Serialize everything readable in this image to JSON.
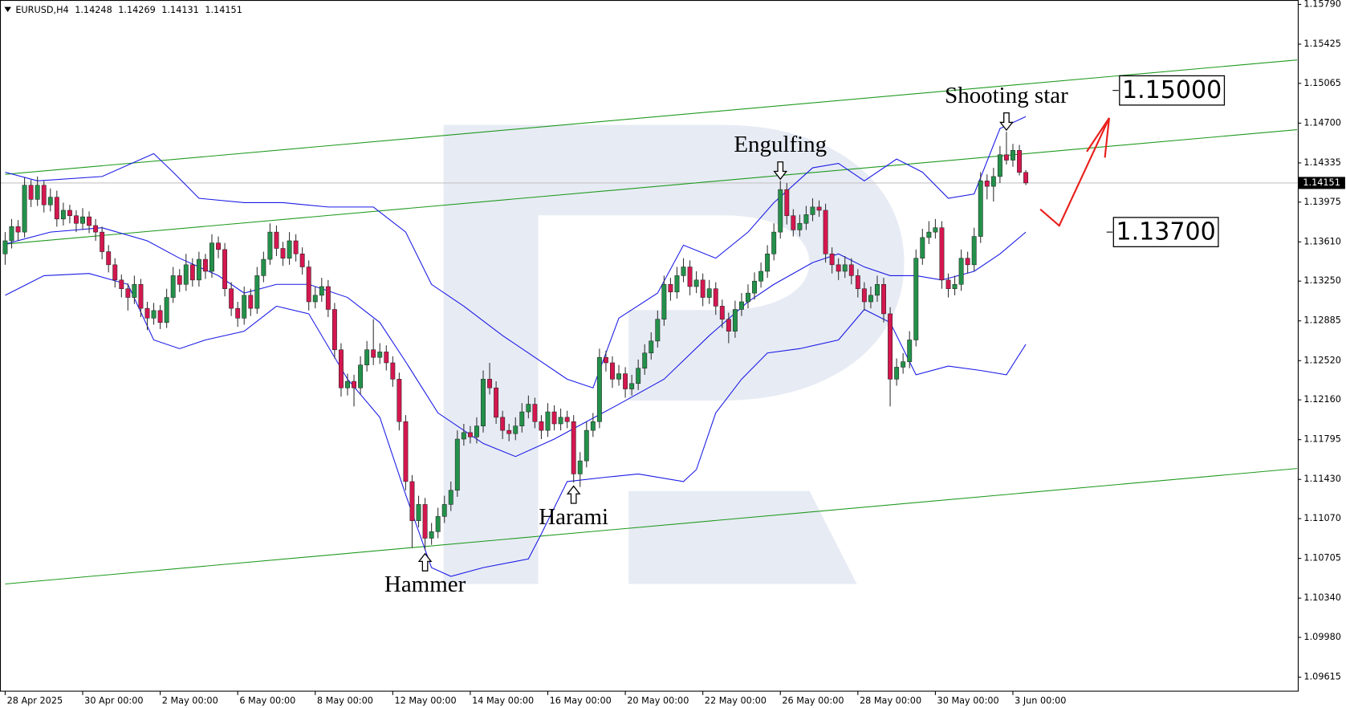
{
  "chart_data": {
    "type": "candlestick",
    "symbol": "EURUSD,H4",
    "up_color": "#23914a",
    "down_color": "#d4174f",
    "xlim": [
      -0.8,
      200.1
    ],
    "ylim": [
      1.0949,
      1.1583
    ],
    "yticks": [
      {
        "value": 1.1579,
        "label": "1.15790"
      },
      1.15425,
      1.15065,
      {
        "value": 1.147,
        "label": "1.14700"
      },
      1.14335,
      1.13975,
      {
        "value": 1.1361,
        "label": "1.13610"
      },
      {
        "value": 1.1325,
        "label": "1.13250"
      },
      1.12885,
      {
        "value": 1.1252,
        "label": "1.12520"
      },
      {
        "value": 1.1216,
        "label": "1.12160"
      },
      1.11795,
      {
        "value": 1.1143,
        "label": "1.11430"
      },
      {
        "value": 1.1107,
        "label": "1.11070"
      },
      1.10705,
      {
        "value": 1.1034,
        "label": "1.10340"
      },
      {
        "value": 1.0998,
        "label": "1.09980"
      },
      1.09615
    ],
    "xticks": [
      {
        "value": 0,
        "label": "28 Apr 2025"
      },
      {
        "value": 12,
        "label": "30 Apr 00:00"
      },
      {
        "value": 24,
        "label": "2 May 00:00"
      },
      {
        "value": 36,
        "label": "6 May 00:00"
      },
      {
        "value": 48,
        "label": "8 May 00:00"
      },
      {
        "value": 60,
        "label": "12 May 00:00"
      },
      {
        "value": 72,
        "label": "14 May 00:00"
      },
      {
        "value": 84,
        "label": "16 May 00:00"
      },
      {
        "value": 96,
        "label": "20 May 00:00"
      },
      {
        "value": 108,
        "label": "22 May 00:00"
      },
      {
        "value": 120,
        "label": "26 May 00:00"
      },
      {
        "value": 132,
        "label": "28 May 00:00"
      },
      {
        "value": 144,
        "label": "30 May 00:00"
      },
      {
        "value": 156,
        "label": "3 Jun 00:00"
      }
    ],
    "candles": [
      [
        1.135,
        1.137,
        1.134,
        1.1362
      ],
      [
        1.1362,
        1.1382,
        1.1355,
        1.1375
      ],
      [
        1.1375,
        1.1381,
        1.1362,
        1.137
      ],
      [
        1.137,
        1.142,
        1.1365,
        1.1413
      ],
      [
        1.1413,
        1.1418,
        1.1393,
        1.14
      ],
      [
        1.14,
        1.1421,
        1.1394,
        1.1413
      ],
      [
        1.1413,
        1.1417,
        1.1388,
        1.1395
      ],
      [
        1.1395,
        1.141,
        1.1389,
        1.1402
      ],
      [
        1.1402,
        1.1408,
        1.1375,
        1.1382
      ],
      [
        1.1382,
        1.1397,
        1.1376,
        1.139
      ],
      [
        1.139,
        1.1395,
        1.1378,
        1.1385
      ],
      [
        1.1385,
        1.139,
        1.137,
        1.1378
      ],
      [
        1.1378,
        1.1392,
        1.1372,
        1.1384
      ],
      [
        1.1384,
        1.1389,
        1.1369,
        1.1376
      ],
      [
        1.1376,
        1.1382,
        1.1362,
        1.137
      ],
      [
        1.137,
        1.1375,
        1.1345,
        1.1352
      ],
      [
        1.1352,
        1.1358,
        1.1333,
        1.134
      ],
      [
        1.134,
        1.1346,
        1.1319,
        1.1326
      ],
      [
        1.1326,
        1.1331,
        1.131,
        1.1318
      ],
      [
        1.1318,
        1.1323,
        1.1298,
        1.131
      ],
      [
        1.131,
        1.133,
        1.1304,
        1.1322
      ],
      [
        1.1322,
        1.1327,
        1.1292,
        1.13
      ],
      [
        1.13,
        1.1306,
        1.128,
        1.1291
      ],
      [
        1.1291,
        1.1305,
        1.1285,
        1.1298
      ],
      [
        1.1298,
        1.1303,
        1.1281,
        1.1287
      ],
      [
        1.1287,
        1.1318,
        1.1282,
        1.131
      ],
      [
        1.131,
        1.1338,
        1.1305,
        1.133
      ],
      [
        1.133,
        1.1336,
        1.1315,
        1.1322
      ],
      [
        1.1322,
        1.135,
        1.1316,
        1.134
      ],
      [
        1.134,
        1.1346,
        1.132,
        1.1326
      ],
      [
        1.1326,
        1.1352,
        1.132,
        1.1345
      ],
      [
        1.1345,
        1.135,
        1.1327,
        1.1334
      ],
      [
        1.1334,
        1.1368,
        1.1328,
        1.136
      ],
      [
        1.136,
        1.1366,
        1.1346,
        1.1354
      ],
      [
        1.1354,
        1.136,
        1.1311,
        1.1318
      ],
      [
        1.1318,
        1.1324,
        1.1293,
        1.13
      ],
      [
        1.13,
        1.1306,
        1.1283,
        1.1291
      ],
      [
        1.1291,
        1.132,
        1.1285,
        1.1312
      ],
      [
        1.1312,
        1.1318,
        1.1293,
        1.13
      ],
      [
        1.13,
        1.1338,
        1.1295,
        1.133
      ],
      [
        1.133,
        1.1352,
        1.1324,
        1.1345
      ],
      [
        1.1345,
        1.1378,
        1.134,
        1.137
      ],
      [
        1.137,
        1.1376,
        1.1348,
        1.1355
      ],
      [
        1.1355,
        1.1361,
        1.1339,
        1.1346
      ],
      [
        1.1346,
        1.137,
        1.134,
        1.1362
      ],
      [
        1.1362,
        1.1368,
        1.1343,
        1.135
      ],
      [
        1.135,
        1.1356,
        1.1331,
        1.1338
      ],
      [
        1.1338,
        1.1344,
        1.1298,
        1.1306
      ],
      [
        1.1306,
        1.132,
        1.13,
        1.1312
      ],
      [
        1.1312,
        1.1328,
        1.1306,
        1.132
      ],
      [
        1.132,
        1.1326,
        1.1292,
        1.1299
      ],
      [
        1.1299,
        1.1305,
        1.1254,
        1.1262
      ],
      [
        1.1262,
        1.1268,
        1.1219,
        1.1227
      ],
      [
        1.1227,
        1.124,
        1.122,
        1.1233
      ],
      [
        1.1233,
        1.1239,
        1.121,
        1.1227
      ],
      [
        1.1227,
        1.1256,
        1.1221,
        1.1248
      ],
      [
        1.1248,
        1.127,
        1.1242,
        1.1262
      ],
      [
        1.1262,
        1.129,
        1.1248,
        1.1255
      ],
      [
        1.1255,
        1.1268,
        1.1249,
        1.126
      ],
      [
        1.126,
        1.1266,
        1.1243,
        1.125
      ],
      [
        1.125,
        1.1256,
        1.1228,
        1.1235
      ],
      [
        1.1235,
        1.1241,
        1.1188,
        1.1196
      ],
      [
        1.1196,
        1.1202,
        1.1133,
        1.1141
      ],
      [
        1.1141,
        1.1147,
        1.108,
        1.1105
      ],
      [
        1.1105,
        1.1128,
        1.1099,
        1.112
      ],
      [
        1.112,
        1.1126,
        1.1078,
        1.1089
      ],
      [
        1.1089,
        1.1103,
        1.1083,
        1.1095
      ],
      [
        1.1095,
        1.1117,
        1.1089,
        1.1109
      ],
      [
        1.1109,
        1.1128,
        1.1103,
        1.112
      ],
      [
        1.112,
        1.1141,
        1.1114,
        1.1133
      ],
      [
        1.1133,
        1.1188,
        1.1127,
        1.118
      ],
      [
        1.118,
        1.1194,
        1.1174,
        1.1186
      ],
      [
        1.1186,
        1.1192,
        1.1176,
        1.1182
      ],
      [
        1.1182,
        1.12,
        1.1176,
        1.1192
      ],
      [
        1.1192,
        1.1243,
        1.1186,
        1.1235
      ],
      [
        1.1235,
        1.125,
        1.1221,
        1.1227
      ],
      [
        1.1227,
        1.1233,
        1.1194,
        1.12
      ],
      [
        1.12,
        1.1206,
        1.118,
        1.1188
      ],
      [
        1.1188,
        1.1194,
        1.1178,
        1.1185
      ],
      [
        1.1185,
        1.12,
        1.1179,
        1.1192
      ],
      [
        1.1192,
        1.1213,
        1.1186,
        1.1205
      ],
      [
        1.1205,
        1.122,
        1.1199,
        1.1212
      ],
      [
        1.1212,
        1.1218,
        1.119,
        1.1196
      ],
      [
        1.1196,
        1.1202,
        1.118,
        1.1188
      ],
      [
        1.1188,
        1.1213,
        1.1182,
        1.1205
      ],
      [
        1.1205,
        1.1211,
        1.1188,
        1.1194
      ],
      [
        1.1194,
        1.1208,
        1.1188,
        1.12
      ],
      [
        1.12,
        1.1206,
        1.119,
        1.1196
      ],
      [
        1.1196,
        1.1202,
        1.114,
        1.1148
      ],
      [
        1.1148,
        1.1168,
        1.1136,
        1.116
      ],
      [
        1.116,
        1.1196,
        1.1154,
        1.1188
      ],
      [
        1.1188,
        1.1204,
        1.1182,
        1.1196
      ],
      [
        1.1196,
        1.1263,
        1.119,
        1.1255
      ],
      [
        1.1255,
        1.1261,
        1.1242,
        1.125
      ],
      [
        1.125,
        1.1256,
        1.1227,
        1.1235
      ],
      [
        1.1235,
        1.1248,
        1.1229,
        1.124
      ],
      [
        1.124,
        1.1246,
        1.1218,
        1.1226
      ],
      [
        1.1226,
        1.1239,
        1.122,
        1.1231
      ],
      [
        1.1231,
        1.1253,
        1.1225,
        1.1245
      ],
      [
        1.1245,
        1.1267,
        1.1239,
        1.1259
      ],
      [
        1.1259,
        1.1278,
        1.1253,
        1.127
      ],
      [
        1.127,
        1.1298,
        1.1264,
        1.129
      ],
      [
        1.129,
        1.133,
        1.1284,
        1.1322
      ],
      [
        1.1322,
        1.1328,
        1.1307,
        1.1315
      ],
      [
        1.1315,
        1.1338,
        1.1309,
        1.133
      ],
      [
        1.133,
        1.1346,
        1.1324,
        1.1338
      ],
      [
        1.1338,
        1.1344,
        1.1312,
        1.132
      ],
      [
        1.132,
        1.1334,
        1.1314,
        1.1326
      ],
      [
        1.1326,
        1.1332,
        1.1302,
        1.131
      ],
      [
        1.131,
        1.1326,
        1.1304,
        1.1318
      ],
      [
        1.1318,
        1.1324,
        1.1294,
        1.1302
      ],
      [
        1.1302,
        1.1308,
        1.1282,
        1.129
      ],
      [
        1.129,
        1.1296,
        1.1268,
        1.1279
      ],
      [
        1.1279,
        1.1307,
        1.1273,
        1.1299
      ],
      [
        1.1299,
        1.1314,
        1.1293,
        1.1306
      ],
      [
        1.1306,
        1.1322,
        1.13,
        1.1314
      ],
      [
        1.1314,
        1.1333,
        1.1308,
        1.1325
      ],
      [
        1.1325,
        1.1342,
        1.1319,
        1.1334
      ],
      [
        1.1334,
        1.1358,
        1.1328,
        1.135
      ],
      [
        1.135,
        1.1378,
        1.1344,
        1.137
      ],
      [
        1.137,
        1.1417,
        1.1364,
        1.1409
      ],
      [
        1.1409,
        1.1415,
        1.1377,
        1.1385
      ],
      [
        1.1385,
        1.1391,
        1.1366,
        1.1372
      ],
      [
        1.1372,
        1.1386,
        1.1366,
        1.1378
      ],
      [
        1.1378,
        1.1394,
        1.1372,
        1.1386
      ],
      [
        1.1386,
        1.1401,
        1.138,
        1.1393
      ],
      [
        1.1393,
        1.1399,
        1.1384,
        1.139
      ],
      [
        1.139,
        1.1396,
        1.1342,
        1.135
      ],
      [
        1.135,
        1.1356,
        1.1332,
        1.134
      ],
      [
        1.134,
        1.1346,
        1.1326,
        1.1334
      ],
      [
        1.1334,
        1.1348,
        1.1328,
        1.134
      ],
      [
        1.134,
        1.1346,
        1.1322,
        1.133
      ],
      [
        1.133,
        1.1336,
        1.131,
        1.1318
      ],
      [
        1.1318,
        1.1324,
        1.1298,
        1.1306
      ],
      [
        1.1306,
        1.132,
        1.13,
        1.1312
      ],
      [
        1.1312,
        1.133,
        1.1306,
        1.1322
      ],
      [
        1.1322,
        1.1328,
        1.1287,
        1.1295
      ],
      [
        1.1295,
        1.1301,
        1.121,
        1.1235
      ],
      [
        1.1235,
        1.1254,
        1.1229,
        1.1246
      ],
      [
        1.1246,
        1.1259,
        1.124,
        1.1251
      ],
      [
        1.1251,
        1.1279,
        1.1245,
        1.1271
      ],
      [
        1.1271,
        1.1354,
        1.1265,
        1.1346
      ],
      [
        1.1346,
        1.1373,
        1.134,
        1.1365
      ],
      [
        1.1365,
        1.138,
        1.1359,
        1.137
      ],
      [
        1.137,
        1.1382,
        1.1364,
        1.1374
      ],
      [
        1.1374,
        1.138,
        1.1318,
        1.1326
      ],
      [
        1.1326,
        1.1332,
        1.131,
        1.1318
      ],
      [
        1.1318,
        1.133,
        1.1312,
        1.1322
      ],
      [
        1.1322,
        1.1354,
        1.1316,
        1.1346
      ],
      [
        1.1346,
        1.1352,
        1.1332,
        1.134
      ],
      [
        1.134,
        1.1374,
        1.1334,
        1.1366
      ],
      [
        1.1366,
        1.1425,
        1.136,
        1.1417
      ],
      [
        1.1417,
        1.1423,
        1.14,
        1.1412
      ],
      [
        1.1412,
        1.1429,
        1.1398,
        1.1421
      ],
      [
        1.1421,
        1.1449,
        1.1415,
        1.1441
      ],
      [
        1.1441,
        1.1462,
        1.1432,
        1.1436
      ],
      [
        1.1436,
        1.1451,
        1.143,
        1.1445
      ],
      [
        1.1445,
        1.145,
        1.1422,
        1.14248
      ],
      [
        1.14248,
        1.14269,
        1.14131,
        1.14151
      ]
    ],
    "bands": [
      {
        "color": "#1a1ae6",
        "x": [
          0,
          5,
          15,
          23,
          26,
          30,
          37,
          43,
          50,
          57,
          62,
          66,
          71,
          77,
          82,
          87,
          91,
          95,
          101,
          105,
          110,
          115,
          119,
          125,
          129,
          133,
          138,
          142,
          146,
          150,
          154,
          158
        ],
        "values": [
          1.1425,
          1.1417,
          1.1421,
          1.1442,
          1.1425,
          1.1401,
          1.1397,
          1.1397,
          1.1393,
          1.1393,
          1.137,
          1.1322,
          1.1302,
          1.1275,
          1.1255,
          1.1235,
          1.1227,
          1.1291,
          1.1314,
          1.1358,
          1.1346,
          1.137,
          1.1397,
          1.1429,
          1.1433,
          1.1417,
          1.1437,
          1.1425,
          1.1401,
          1.1405,
          1.1465,
          1.1476
        ]
      },
      {
        "color": "#1a1ae6",
        "x": [
          0,
          7,
          15,
          22,
          27,
          33,
          37,
          42,
          47,
          53,
          58,
          62,
          67,
          74,
          79,
          85,
          90,
          95,
          102,
          109,
          115,
          119,
          125,
          129,
          133,
          137,
          141,
          145,
          150,
          154,
          158
        ],
        "values": [
          1.1359,
          1.137,
          1.1374,
          1.1362,
          1.1346,
          1.133,
          1.1314,
          1.1322,
          1.1322,
          1.131,
          1.1287,
          1.1251,
          1.1204,
          1.1176,
          1.1164,
          1.118,
          1.1196,
          1.1212,
          1.1235,
          1.1275,
          1.1306,
          1.1322,
          1.1342,
          1.135,
          1.1338,
          1.133,
          1.133,
          1.1326,
          1.1334,
          1.135,
          1.137
        ]
      },
      {
        "color": "#1a1ae6",
        "x": [
          0,
          6,
          13,
          19,
          23,
          27,
          31,
          37,
          42,
          47,
          53,
          58,
          62,
          66,
          69,
          74,
          81,
          83,
          87,
          93,
          98,
          105,
          107,
          110,
          114,
          118,
          123,
          129,
          133,
          137,
          141,
          146,
          151,
          155,
          158
        ],
        "values": [
          1.1312,
          1.133,
          1.1332,
          1.1322,
          1.1271,
          1.1263,
          1.1271,
          1.1279,
          1.1302,
          1.1295,
          1.1235,
          1.12,
          1.1129,
          1.1062,
          1.1054,
          1.1062,
          1.107,
          1.1093,
          1.1141,
          1.1145,
          1.1148,
          1.1141,
          1.1152,
          1.1204,
          1.1235,
          1.1259,
          1.1263,
          1.1271,
          1.1299,
          1.1287,
          1.1239,
          1.1247,
          1.1243,
          1.1239,
          1.1267
        ]
      }
    ],
    "trendlines": [
      {
        "color": "#1f9a1f",
        "x": [
          0,
          200
        ],
        "values": [
          1.1423,
          1.1528
        ]
      },
      {
        "color": "#1f9a1f",
        "x": [
          0,
          200
        ],
        "values": [
          1.1359,
          1.1464
        ]
      },
      {
        "color": "#1f9a1f",
        "x": [
          0,
          200
        ],
        "values": [
          1.1047,
          1.1153
        ]
      }
    ],
    "levels": [
      {
        "value": 1.15,
        "label": "1.15000"
      },
      {
        "value": 1.137,
        "label": "1.13700"
      }
    ],
    "annotations": [
      "Engulfing",
      "Shooting star",
      "Harami",
      "Hammer"
    ]
  }
}
